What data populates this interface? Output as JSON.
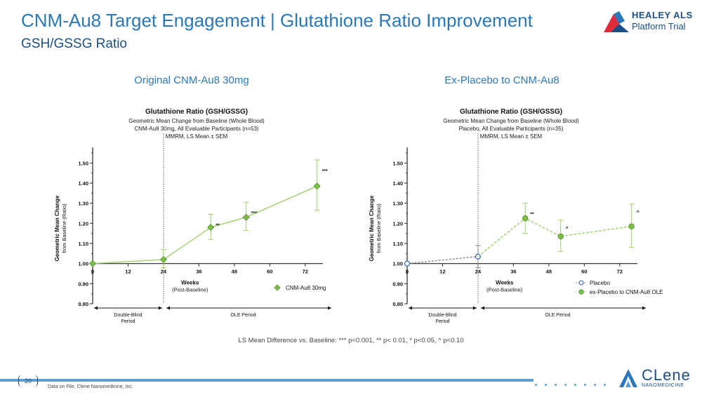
{
  "header": {
    "title": "CNM-Au8 Target Engagement | Glutathione Ratio Improvement",
    "subtitle": "GSH/GSSG Ratio"
  },
  "logos": {
    "healey_line1": "HEALEY ALS",
    "healey_line2": "Platform Trial",
    "clene_line1": "CLene",
    "clene_line2": "NANOMEDICINE"
  },
  "panels": {
    "left_label": "Original CNM-Au8 30mg",
    "right_label": "Ex-Placebo to CNM-Au8"
  },
  "footnote": "LS Mean Difference vs. Baseline: *** p<0.001, ** p< 0.01, * p<0.05, ^ p<0.10",
  "footer": {
    "page_number": "20",
    "source": "Data on File, Clene Nanomedicine, Inc."
  },
  "colors": {
    "title": "#2a78b7",
    "subtitle": "#1c4f85",
    "green_line": "#9fd06a",
    "green_marker": "#7cbf47",
    "placebo_marker": "#3a62b5",
    "accent_bar": "#5b9fd6"
  },
  "chart_data": [
    {
      "type": "line",
      "title": "Glutathione Ratio (GSH/GSSG)",
      "subtitle_lines": [
        "Geometric Mean Change from Baseline (Whole Blood)",
        "CNM-Au8 30mg, All Evaluable Participants (n=53)",
        "MMRM, LS Mean ± SEM"
      ],
      "ylabel_line1": "Geometric Mean Change",
      "ylabel_line2": "from Baseline (Ratio)",
      "xlabel_line1": "Weeks",
      "xlabel_line2": "(Post-Baseline)",
      "ylim": [
        0.8,
        1.55
      ],
      "xlim": [
        0,
        78
      ],
      "yticks": [
        0.8,
        0.9,
        1.0,
        1.1,
        1.2,
        1.3,
        1.4,
        1.5
      ],
      "ytick_labels": [
        "0.80",
        "0.90",
        "1.00",
        "1.10",
        "1.20",
        "1.30",
        "1.40",
        "1.50"
      ],
      "xticks": [
        0,
        12,
        24,
        36,
        48,
        60,
        72
      ],
      "xtick_labels": [
        "0",
        "12",
        "24",
        "36",
        "48",
        "60",
        "72"
      ],
      "divider_x": 24,
      "period_left": [
        "Double-Blind",
        "Period"
      ],
      "period_right": "OLE Period",
      "series": [
        {
          "name": "CNM-Au8 30mg",
          "style": "solid",
          "x": [
            0,
            24,
            40,
            52,
            76
          ],
          "y": [
            1.0,
            1.02,
            1.18,
            1.23,
            1.385
          ],
          "err_lo": [
            1.0,
            0.98,
            1.12,
            1.165,
            1.265
          ],
          "err_hi": [
            1.0,
            1.07,
            1.245,
            1.305,
            1.515
          ],
          "sig": [
            "",
            "",
            "**",
            "***",
            "***"
          ],
          "marker_colors": [
            "green",
            "green",
            "green",
            "green",
            "green"
          ]
        }
      ],
      "legend": [
        {
          "label": "CNM-Au8 30mg",
          "marker": "diamond"
        }
      ],
      "legend_position": "bottom-right"
    },
    {
      "type": "line",
      "title": "Glutathione Ratio (GSH/GSSG)",
      "subtitle_lines": [
        "Geometric Mean Change from Baseline (Whole Blood)",
        "Placebo, All Evaluable Participants (n=35)",
        "MMRM, LS Mean ± SEM"
      ],
      "ylabel_line1": "Geometric Mean Change",
      "ylabel_line2": "from Baseline (Ratio)",
      "xlabel_line1": "Weeks",
      "xlabel_line2": "(Post-Baseline)",
      "ylim": [
        0.8,
        1.55
      ],
      "xlim": [
        0,
        78
      ],
      "yticks": [
        0.8,
        0.9,
        1.0,
        1.1,
        1.2,
        1.3,
        1.4,
        1.5
      ],
      "ytick_labels": [
        "0.80",
        "0.90",
        "1.00",
        "1.10",
        "1.20",
        "1.30",
        "1.40",
        "1.50"
      ],
      "xticks": [
        0,
        12,
        24,
        36,
        48,
        60,
        72
      ],
      "xtick_labels": [
        "0",
        "12",
        "24",
        "36",
        "48",
        "60",
        "72"
      ],
      "divider_x": 24,
      "period_left": [
        "Double-Blind",
        "Period"
      ],
      "period_right": "OLE Period",
      "series": [
        {
          "name": "Placebo",
          "style": "dashed-gray",
          "x": [
            0,
            24
          ],
          "y": [
            1.0,
            1.035
          ],
          "err_lo": [
            1.0,
            0.98
          ],
          "err_hi": [
            1.0,
            1.09
          ],
          "sig": [
            "",
            ""
          ],
          "marker_colors": [
            "placebo",
            "placebo"
          ]
        },
        {
          "name": "ex-Placebo to CNM-Au8 OLE",
          "style": "dashed-green",
          "x": [
            24,
            40,
            52,
            76
          ],
          "y": [
            1.035,
            1.225,
            1.135,
            1.185
          ],
          "err_lo": [
            1.035,
            1.15,
            1.06,
            1.08
          ],
          "err_hi": [
            1.035,
            1.3,
            1.215,
            1.295
          ],
          "sig": [
            "",
            "**",
            "^",
            "^"
          ],
          "marker_colors": [
            "none",
            "green",
            "green",
            "green"
          ]
        }
      ],
      "legend": [
        {
          "label": "Placebo",
          "marker": "open-circle"
        },
        {
          "label": "ex-Placebo to CNM-Au8 OLE",
          "marker": "circle"
        }
      ],
      "legend_position": "bottom-right"
    }
  ]
}
